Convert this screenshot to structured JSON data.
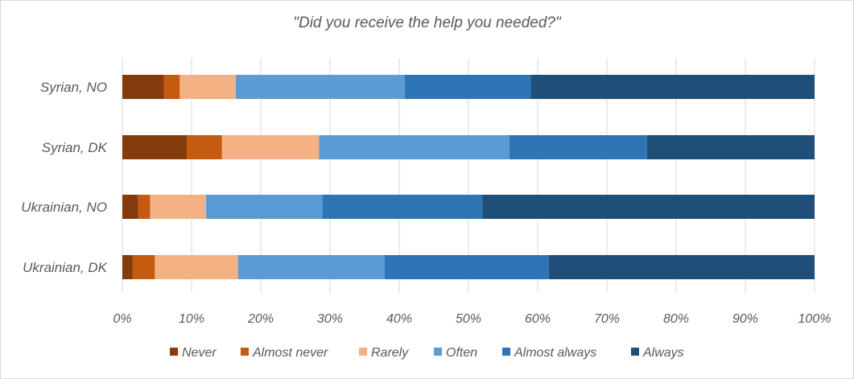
{
  "chart_data": {
    "type": "bar",
    "orientation": "horizontal",
    "stacked": "100%",
    "title": "\"Did you receive the help you needed?\"",
    "categories": [
      "Syrian, NO",
      "Syrian, DK",
      "Ukrainian, NO",
      "Ukrainian, DK"
    ],
    "series": [
      {
        "name": "Never",
        "color": "#843c0c",
        "values": [
          6,
          9.3,
          2.3,
          1.5
        ]
      },
      {
        "name": "Almost never",
        "color": "#c55a11",
        "values": [
          2.3,
          5.1,
          1.7,
          3.2
        ]
      },
      {
        "name": "Rarely",
        "color": "#f4b183",
        "values": [
          8.1,
          14,
          8.1,
          12
        ]
      },
      {
        "name": "Often",
        "color": "#5b9bd5",
        "values": [
          24.4,
          27.5,
          16.8,
          21.2
        ]
      },
      {
        "name": "Almost always",
        "color": "#2e75b6",
        "values": [
          18.2,
          19.9,
          23.1,
          23.7
        ]
      },
      {
        "name": "Always",
        "color": "#1f4e79",
        "values": [
          41,
          24.2,
          48,
          38.4
        ]
      }
    ],
    "xlim": [
      0,
      100
    ],
    "x_ticks": [
      "0%",
      "10%",
      "20%",
      "30%",
      "40%",
      "50%",
      "60%",
      "70%",
      "80%",
      "90%",
      "100%"
    ],
    "grid": true,
    "legend_position": "bottom"
  }
}
